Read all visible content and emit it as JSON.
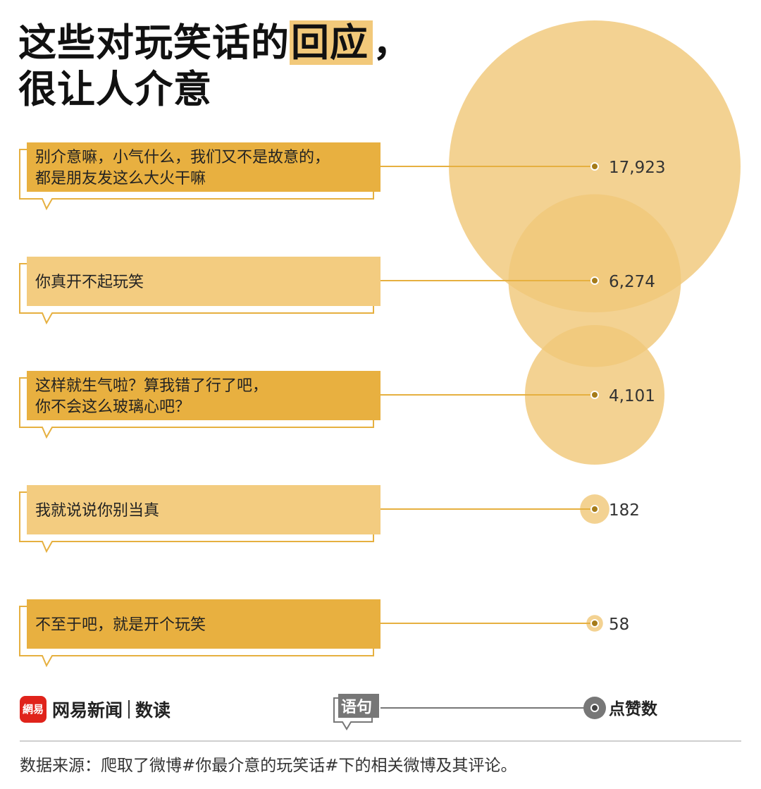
{
  "title": {
    "line1_pre": "这些对玩笑话的",
    "line1_highlight": "回应",
    "line1_post": "，",
    "line2": "很让人介意"
  },
  "colors": {
    "bubble_fill": "#f0c87a",
    "box_dark": "#e8b040",
    "box_light": "#f3cc80",
    "box_outline": "#e6b040",
    "connector": "#e6b040",
    "dot": "#a57b19",
    "legend_gray": "#777777",
    "brand_red": "#e0231b"
  },
  "chart_data": {
    "type": "bubble",
    "value_label": "点赞数",
    "category_label": "语句",
    "items": [
      {
        "category": [
          "别介意嘛，小气什么，我们又不是故意的，",
          "都是朋友发这么大火干嘛"
        ],
        "value": 17923,
        "display": "17,923",
        "box_style": "dark"
      },
      {
        "category": [
          "你真开不起玩笑"
        ],
        "value": 6274,
        "display": "6,274",
        "box_style": "light"
      },
      {
        "category": [
          "这样就生气啦？算我错了行了吧，",
          "你不会这么玻璃心吧？"
        ],
        "value": 4101,
        "display": "4,101",
        "box_style": "dark"
      },
      {
        "category": [
          "我就说说你别当真"
        ],
        "value": 182,
        "display": "182",
        "box_style": "light"
      },
      {
        "category": [
          "不至于吧，就是开个玩笑"
        ],
        "value": 58,
        "display": "58",
        "box_style": "dark"
      }
    ]
  },
  "legend": {
    "category": "语句",
    "value": "点赞数"
  },
  "brand": {
    "logo_text": "網易",
    "name": "网易新闻",
    "sub": "数读"
  },
  "source": "数据来源：爬取了微博#你最介意的玩笑话#下的相关微博及其评论。"
}
